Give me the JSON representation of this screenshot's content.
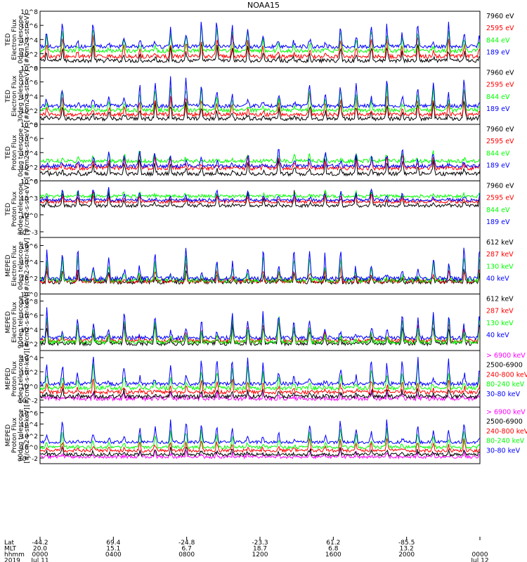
{
  "title": "NOAA15",
  "colors": {
    "black": "#000000",
    "red": "#ff0000",
    "green": "#00ff00",
    "blue": "#0000ff",
    "magenta": "#ff00ff"
  },
  "chart_data": [
    {
      "type": "line",
      "instrument": "TED",
      "quantity": "Electron Flux",
      "telescope": "0deg telescope",
      "unit": "[#/cm2-s-str-eV]",
      "ylabel": [
        "TED",
        "Electron Flux",
        "0deg telescope",
        "[#/cm2-s-str-eV]"
      ],
      "yticks": [
        "10^0",
        "10^2",
        "10^4",
        "10^6",
        "10^8"
      ],
      "ylim_log10": [
        0,
        8
      ],
      "series": [
        {
          "name": "7960 eV",
          "color": "black",
          "base": 1.0,
          "peak": 3.0
        },
        {
          "name": "2595 eV",
          "color": "red",
          "base": 1.6,
          "peak": 4.5
        },
        {
          "name": "844 eV",
          "color": "green",
          "base": 2.4,
          "peak": 5.5
        },
        {
          "name": "189 eV",
          "color": "blue",
          "base": 3.0,
          "peak": 6.5
        }
      ]
    },
    {
      "type": "line",
      "instrument": "TED",
      "quantity": "Electron Flux",
      "telescope": "30deg telescope",
      "unit": "[#/cm2-s-str-eV]",
      "ylabel": [
        "TED",
        "Electron Flux",
        "30deg telescope",
        "[#/cm2-s-str-eV]"
      ],
      "yticks": [
        "10^0",
        "10^2",
        "10^4",
        "10^6",
        "10^8"
      ],
      "ylim_log10": [
        0,
        8
      ],
      "series": [
        {
          "name": "7960 eV",
          "color": "black",
          "base": 0.8,
          "peak": 3.0
        },
        {
          "name": "2595 eV",
          "color": "red",
          "base": 1.4,
          "peak": 4.3
        },
        {
          "name": "844 eV",
          "color": "green",
          "base": 2.0,
          "peak": 5.3
        },
        {
          "name": "189 eV",
          "color": "blue",
          "base": 2.6,
          "peak": 6.2
        }
      ]
    },
    {
      "type": "line",
      "instrument": "TED",
      "quantity": "Proton Flux",
      "telescope": "0deg telescope",
      "unit": "[#/cm2-s-str-eV]",
      "ylabel": [
        "TED",
        "Proton Flux",
        "0deg telescope",
        "[#/cm2-s-str-eV]"
      ],
      "yticks": [
        "10^0",
        "10^2",
        "10^4",
        "10^6",
        "10^8"
      ],
      "ylim_log10": [
        0,
        8
      ],
      "series": [
        {
          "name": "7960 eV",
          "color": "black",
          "base": 1.0,
          "peak": 3.0
        },
        {
          "name": "2595 eV",
          "color": "red",
          "base": 1.8,
          "peak": 3.5
        },
        {
          "name": "844 eV",
          "color": "green",
          "base": 2.8,
          "peak": 3.9
        },
        {
          "name": "189 eV",
          "color": "blue",
          "base": 2.1,
          "peak": 4.3
        }
      ]
    },
    {
      "type": "line",
      "instrument": "TED",
      "quantity": "Proton Flux",
      "telescope": "30deg telescope",
      "unit": "[#/cm2-s-str-eV]",
      "ylabel": [
        "TED",
        "Proton Flux",
        "30deg telescope",
        "[#/cm2-s-str-eV]"
      ],
      "yticks": [
        "10^-3",
        "10^0",
        "10^3",
        "10^6"
      ],
      "ylim_log10": [
        -4,
        6
      ],
      "series": [
        {
          "name": "7960 eV",
          "color": "black",
          "base": 1.6,
          "peak": 4.0
        },
        {
          "name": "2595 eV",
          "color": "red",
          "base": 2.3,
          "peak": 3.6
        },
        {
          "name": "844 eV",
          "color": "green",
          "base": 3.3,
          "peak": 4.0
        },
        {
          "name": "189 eV",
          "color": "blue",
          "base": 2.6,
          "peak": 4.3
        }
      ]
    },
    {
      "type": "line",
      "instrument": "MEPED",
      "quantity": "Electron Flux",
      "telescope": "0deg telescope",
      "unit": "[#/cm2-s-str-keV]",
      "ylabel": [
        "MEPED",
        "Electron Flux",
        "0deg telescope",
        "[#/cm2-s-str-keV]"
      ],
      "yticks": [
        "10^0",
        "10^2",
        "10^4",
        "10^6"
      ],
      "ylim_log10": [
        0,
        7
      ],
      "series": [
        {
          "name": "612 keV",
          "color": "black",
          "base": 1.5,
          "peak": 2.5
        },
        {
          "name": "287 keV",
          "color": "red",
          "base": 1.6,
          "peak": 3.2
        },
        {
          "name": "130 keV",
          "color": "green",
          "base": 1.7,
          "peak": 4.5
        },
        {
          "name": "40 keV",
          "color": "blue",
          "base": 1.9,
          "peak": 5.8
        }
      ]
    },
    {
      "type": "line",
      "instrument": "MEPED",
      "quantity": "Electron Flux",
      "telescope": "90deg telescope",
      "unit": "[#/cm2-s-str-keV]",
      "ylabel": [
        "MEPED",
        "Electron Flux",
        "90deg telescope",
        "[#/cm2-s-str-keV]"
      ],
      "yticks": [
        "10^2",
        "10^4",
        "10^6",
        "10^8"
      ],
      "ylim_log10": [
        1,
        9
      ],
      "series": [
        {
          "name": "612 keV",
          "color": "black",
          "base": 2.0,
          "peak": 4.8
        },
        {
          "name": "287 keV",
          "color": "red",
          "base": 2.4,
          "peak": 5.3
        },
        {
          "name": "130 keV",
          "color": "green",
          "base": 2.2,
          "peak": 5.6
        },
        {
          "name": "40 keV",
          "color": "blue",
          "base": 2.8,
          "peak": 6.5
        }
      ]
    },
    {
      "type": "line",
      "instrument": "MEPED",
      "quantity": "Proton Flux",
      "telescope": "0deg telescope",
      "unit": "[#/cm2-s-str-keV]",
      "ylabel": [
        "MEPED",
        "Proton Flux",
        "0deg telescope",
        "[#/cm2-s-str-keV]"
      ],
      "yticks": [
        "10^-2",
        "10^0",
        "10^2",
        "10^4"
      ],
      "ylim_log10": [
        -3,
        5
      ],
      "series": [
        {
          "name": "> 6900 keV",
          "color": "magenta",
          "base": -1.8,
          "peak": -1.0
        },
        {
          "name": "2500-6900",
          "color": "black",
          "base": -1.5,
          "peak": -0.5
        },
        {
          "name": "240-800 keV",
          "color": "red",
          "base": -0.9,
          "peak": 0.8
        },
        {
          "name": "80-240 keV",
          "color": "green",
          "base": -0.3,
          "peak": 2.6
        },
        {
          "name": "30-80 keV",
          "color": "blue",
          "base": 0.3,
          "peak": 4.0
        }
      ]
    },
    {
      "type": "line",
      "instrument": "MEPED",
      "quantity": "Proton Flux",
      "telescope": "90deg telescope",
      "unit": "[#/cm2-s-str-keV]",
      "ylabel": [
        "MEPED",
        "Proton Flux",
        "90deg telescope",
        "[#/cm2-s-str-keV]"
      ],
      "yticks": [
        "10^-2",
        "10^0",
        "10^2",
        "10^4",
        "10^6"
      ],
      "ylim_log10": [
        -3,
        7
      ],
      "series": [
        {
          "name": "> 6900 keV",
          "color": "magenta",
          "base": -1.8,
          "peak": -1.0
        },
        {
          "name": "2500-6900",
          "color": "black",
          "base": -1.4,
          "peak": -0.5
        },
        {
          "name": "240-800 keV",
          "color": "red",
          "base": -0.7,
          "peak": 1.2
        },
        {
          "name": "80-240 keV",
          "color": "green",
          "base": -0.1,
          "peak": 3.0
        },
        {
          "name": "30-80 keV",
          "color": "blue",
          "base": 0.8,
          "peak": 4.6
        }
      ]
    }
  ],
  "xaxis": {
    "row_labels": [
      "Lat",
      "MLT",
      "hhmm",
      "2019"
    ],
    "columns": [
      {
        "time_hours": 0,
        "lat": "-44.2",
        "mlt": "20.0",
        "hhmm": "0000",
        "date": "Jul 11"
      },
      {
        "time_hours": 4,
        "lat": "69.4",
        "mlt": "15.1",
        "hhmm": "0400",
        "date": ""
      },
      {
        "time_hours": 8,
        "lat": "-24.8",
        "mlt": "6.7",
        "hhmm": "0800",
        "date": ""
      },
      {
        "time_hours": 12,
        "lat": "-23.3",
        "mlt": "18.7",
        "hhmm": "1200",
        "date": ""
      },
      {
        "time_hours": 16,
        "lat": "61.2",
        "mlt": "6.8",
        "hhmm": "1600",
        "date": ""
      },
      {
        "time_hours": 20,
        "lat": "-85.5",
        "mlt": "13.2",
        "hhmm": "2000",
        "date": ""
      },
      {
        "time_hours": 24,
        "lat": "",
        "mlt": "",
        "hhmm": "0000",
        "date": "Jul 12"
      }
    ]
  }
}
